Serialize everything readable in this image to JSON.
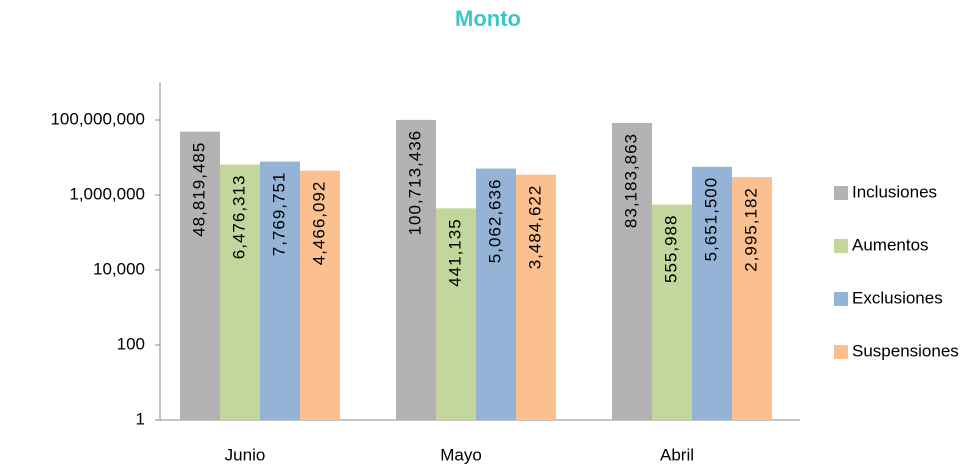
{
  "chart_data": {
    "type": "bar",
    "title": "Monto",
    "categories": [
      "Junio",
      "Mayo",
      "Abril"
    ],
    "log_scale": true,
    "ylim": [
      1,
      100000000
    ],
    "yticks": [
      1,
      100,
      {
        "value": 10000,
        "label": "10,000"
      },
      {
        "value": 1000000,
        "label": "1,000,000"
      },
      {
        "value": 100000000,
        "label": "100,000,000"
      }
    ],
    "legend": "right",
    "series": [
      {
        "name": "Inclusiones",
        "color": "#b3b3b3",
        "values": [
          48819485,
          100713436,
          83183863
        ],
        "value_labels": [
          "48,819,485",
          "100,713,436",
          "83,183,863"
        ]
      },
      {
        "name": "Aumentos",
        "color": "#c3d69b",
        "values": [
          6476313,
          441135,
          555988
        ],
        "value_labels": [
          "6,476,313",
          "441,135",
          "555,988"
        ]
      },
      {
        "name": "Exclusiones",
        "color": "#95b3d7",
        "values": [
          7769751,
          5062636,
          5651500
        ],
        "value_labels": [
          "7,769,751",
          "5,062,636",
          "5,651,500"
        ]
      },
      {
        "name": "Suspensiones",
        "color": "#fac090",
        "values": [
          4466092,
          3484622,
          2995182
        ],
        "value_labels": [
          "4,466,092",
          "3,484,622",
          "2,995,182"
        ]
      }
    ]
  }
}
